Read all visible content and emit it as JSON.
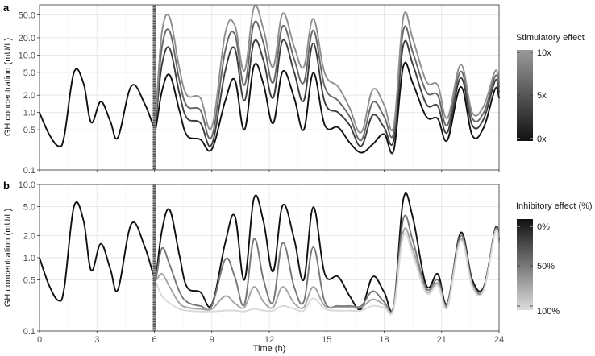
{
  "chart_data": [
    {
      "panel": "a",
      "type": "line",
      "ylabel": "GH concentration (mU/L)",
      "xlabel": "",
      "y_scale": "log",
      "ylim": [
        0.1,
        75
      ],
      "xlim": [
        0,
        24
      ],
      "x_ticks": [
        0,
        3,
        6,
        9,
        12,
        15,
        18,
        21,
        24
      ],
      "x_tick_labels": [
        "",
        "",
        "",
        "",
        "",
        "",
        "",
        "",
        ""
      ],
      "y_ticks": [
        0.1,
        0.5,
        1,
        2,
        5,
        10,
        20,
        50
      ],
      "y_tick_labels": [
        "0.1",
        "0.5",
        "1.0",
        "2.0",
        "5.0",
        "10.0",
        "20.0",
        "50.0"
      ],
      "intervention_start_h": 6,
      "legend": {
        "title": "Stimulatory effect",
        "type": "colorbar",
        "placement": "right",
        "labels": [
          "10x",
          "5x",
          "0x"
        ],
        "color_high": "#9a9a9a",
        "color_low": "#111111"
      },
      "series": [
        {
          "color": "#111111",
          "x": [
            0,
            0.5,
            1,
            1.3,
            1.8,
            2.3,
            2.7,
            3.2,
            3.7,
            4.1,
            4.8,
            5.5,
            6,
            6.1,
            6.4,
            6.8,
            7.3,
            7.7,
            8.4,
            9,
            9.7,
            10.2,
            10.7,
            11.2,
            11.7,
            12.2,
            12.7,
            13.3,
            13.8,
            14.3,
            14.9,
            15.6,
            16.2,
            16.8,
            17.4,
            18,
            18.5,
            19,
            19.5,
            20.2,
            20.8,
            21.3,
            22,
            22.6,
            23.2,
            23.8,
            24
          ],
          "y": [
            1,
            0.42,
            0.26,
            0.4,
            5,
            3.2,
            0.67,
            1.55,
            0.7,
            0.37,
            2.9,
            1.4,
            0.53,
            0.6,
            2.4,
            4.5,
            1.1,
            0.4,
            0.34,
            0.23,
            1.6,
            3.7,
            0.5,
            6.5,
            3.1,
            0.65,
            5.2,
            1.8,
            0.5,
            4.9,
            0.6,
            0.55,
            0.3,
            0.2,
            0.28,
            0.42,
            0.22,
            6.4,
            3.2,
            0.85,
            0.78,
            0.33,
            2.8,
            0.4,
            0.55,
            2.6,
            1.8
          ]
        },
        {
          "color": "#3d3d3d",
          "x": [
            6,
            6.1,
            6.4,
            6.8,
            7.3,
            7.7,
            8.4,
            9,
            9.7,
            10.2,
            10.7,
            11.2,
            11.7,
            12.2,
            12.7,
            13.3,
            13.8,
            14.3,
            14.9,
            15.6,
            16.2,
            16.8,
            17.4,
            18,
            18.5,
            19,
            19.5,
            20.2,
            20.8,
            21.3,
            22,
            22.6,
            23.2,
            23.8,
            24
          ],
          "y": [
            0.53,
            0.9,
            7,
            13,
            2.2,
            0.8,
            0.66,
            0.28,
            5.3,
            13,
            1.6,
            17,
            8,
            1.8,
            18,
            5,
            1.6,
            16,
            1.5,
            1,
            0.6,
            0.26,
            0.9,
            0.55,
            0.33,
            15,
            6.8,
            1.4,
            1.3,
            0.45,
            4,
            0.6,
            0.78,
            3.6,
            2.3
          ]
        },
        {
          "color": "#676767",
          "x": [
            6,
            6.1,
            6.4,
            6.8,
            7.3,
            7.7,
            8.4,
            9,
            9.7,
            10.2,
            10.7,
            11.2,
            11.7,
            12.2,
            12.7,
            13.3,
            13.8,
            14.3,
            14.9,
            15.6,
            16.2,
            16.8,
            17.4,
            18,
            18.5,
            19,
            19.5,
            20.2,
            20.8,
            21.3,
            22,
            22.6,
            23.2,
            23.8,
            24
          ],
          "y": [
            0.53,
            1.1,
            14,
            26,
            3.7,
            1.3,
            1.1,
            0.38,
            12,
            23,
            3,
            36,
            16,
            3.3,
            32,
            8.5,
            3.3,
            27,
            2.8,
            1.6,
            0.85,
            0.33,
            1.5,
            0.85,
            0.45,
            27,
            11,
            2.3,
            2,
            0.6,
            5.2,
            0.8,
            1,
            4.3,
            2.8
          ]
        },
        {
          "color": "#8f8f8f",
          "x": [
            6,
            6.1,
            6.4,
            6.8,
            7.3,
            7.7,
            8.4,
            9,
            9.7,
            10.2,
            10.7,
            11.2,
            11.7,
            12.2,
            12.7,
            13.3,
            13.8,
            14.3,
            14.9,
            15.6,
            16.2,
            16.8,
            17.4,
            18,
            18.5,
            19,
            19.5,
            20.2,
            20.8,
            21.3,
            22,
            22.6,
            23.2,
            23.8,
            24
          ],
          "y": [
            0.53,
            1.3,
            26,
            45,
            6,
            2,
            1.8,
            0.56,
            24,
            33,
            5.3,
            68,
            28,
            6.2,
            53,
            14,
            6.2,
            43,
            4.8,
            2.8,
            1.2,
            0.45,
            2.5,
            1.35,
            0.58,
            46,
            19,
            3.5,
            3,
            0.8,
            6.8,
            1,
            1.3,
            5.3,
            3.3
          ]
        }
      ]
    },
    {
      "panel": "b",
      "type": "line",
      "ylabel": "GH concentration (mU/L)",
      "xlabel": "Time (h)",
      "y_scale": "log",
      "ylim": [
        0.1,
        10
      ],
      "xlim": [
        0,
        24
      ],
      "x_ticks": [
        0,
        3,
        6,
        9,
        12,
        15,
        18,
        21,
        24
      ],
      "x_tick_labels": [
        "0",
        "3",
        "6",
        "9",
        "12",
        "15",
        "18",
        "21",
        "24"
      ],
      "y_ticks": [
        0.1,
        0.5,
        1,
        2,
        5,
        10
      ],
      "y_tick_labels": [
        "0.1",
        "0.5",
        "1.0",
        "2.0",
        "5.0",
        "10.0"
      ],
      "intervention_start_h": 6,
      "legend": {
        "title": "Inhibitory effect (%)",
        "type": "colorbar",
        "placement": "right",
        "labels": [
          "0%",
          "50%",
          "100%"
        ],
        "color_high": "#111111",
        "color_low": "#dcdcdc"
      },
      "series": [
        {
          "color": "#111111",
          "x": [
            0,
            0.5,
            1,
            1.3,
            1.8,
            2.3,
            2.7,
            3.2,
            3.7,
            4.1,
            4.8,
            5.5,
            6,
            6.1,
            6.4,
            6.8,
            7.3,
            7.7,
            8.4,
            9,
            9.7,
            10.2,
            10.7,
            11.2,
            11.7,
            12.2,
            12.7,
            13.3,
            13.8,
            14.3,
            14.9,
            15.6,
            16.2,
            16.8,
            17.4,
            18,
            18.5,
            19,
            19.5,
            20.2,
            20.8,
            21.3,
            22,
            22.6,
            23.2,
            23.8,
            24
          ],
          "y": [
            1,
            0.42,
            0.26,
            0.4,
            5,
            3.2,
            0.67,
            1.55,
            0.7,
            0.37,
            2.9,
            1.4,
            0.53,
            0.6,
            2.4,
            4.5,
            1.1,
            0.4,
            0.34,
            0.23,
            1.6,
            3.7,
            0.5,
            6.5,
            3.1,
            0.65,
            5.2,
            1.8,
            0.5,
            4.9,
            0.6,
            0.55,
            0.3,
            0.2,
            0.55,
            0.34,
            0.22,
            6.3,
            3.5,
            0.42,
            0.6,
            0.24,
            2.2,
            0.5,
            0.4,
            2.5,
            1.8
          ]
        },
        {
          "color": "#777777",
          "x": [
            6,
            6.1,
            6.4,
            6.8,
            7.3,
            7.7,
            8.4,
            9,
            9.7,
            10.2,
            10.7,
            11.2,
            11.7,
            12.2,
            12.7,
            13.3,
            13.8,
            14.3,
            14.9,
            15.6,
            16.2,
            16.8,
            17.4,
            18,
            18.5,
            19,
            19.5,
            20.2,
            20.8,
            21.3,
            22,
            22.6,
            23.2,
            23.8,
            24
          ],
          "y": [
            0.53,
            0.55,
            1.35,
            0.8,
            0.35,
            0.25,
            0.22,
            0.22,
            0.95,
            0.55,
            0.23,
            1.8,
            0.5,
            0.25,
            1.6,
            0.4,
            0.25,
            1.4,
            0.25,
            0.22,
            0.22,
            0.22,
            0.35,
            0.25,
            0.22,
            3.4,
            1.7,
            0.38,
            0.5,
            0.23,
            2,
            0.45,
            0.38,
            2.4,
            1.7
          ]
        },
        {
          "color": "#a3a3a3",
          "x": [
            6,
            6.1,
            6.4,
            6.8,
            7.3,
            7.7,
            8.4,
            9,
            9.7,
            10.2,
            10.7,
            11.2,
            11.7,
            12.2,
            12.7,
            13.3,
            13.8,
            14.3,
            14.9,
            15.6,
            16.2,
            16.8,
            17.4,
            18,
            18.5,
            19,
            19.5,
            20.2,
            20.8,
            21.3,
            22,
            22.6,
            23.2,
            23.8,
            24
          ],
          "y": [
            0.53,
            0.5,
            0.6,
            0.4,
            0.24,
            0.21,
            0.2,
            0.2,
            0.3,
            0.24,
            0.21,
            0.4,
            0.25,
            0.21,
            0.4,
            0.24,
            0.21,
            0.4,
            0.22,
            0.21,
            0.21,
            0.21,
            0.27,
            0.23,
            0.21,
            2.3,
            1.3,
            0.35,
            0.45,
            0.22,
            1.8,
            0.42,
            0.37,
            2.3,
            1.65
          ]
        },
        {
          "color": "#d9d9d9",
          "x": [
            6,
            6.1,
            6.4,
            6.8,
            7.3,
            7.7,
            8.4,
            9,
            9.7,
            10.2,
            10.7,
            11.2,
            11.7,
            12.2,
            12.7,
            13.3,
            13.8,
            14.3,
            14.9,
            15.6,
            16.2,
            16.8,
            17.4,
            18,
            18.5,
            19,
            19.5,
            20.2,
            20.8,
            21.3,
            22,
            22.6,
            23.2,
            23.8,
            24
          ],
          "y": [
            0.53,
            0.45,
            0.3,
            0.24,
            0.2,
            0.19,
            0.185,
            0.185,
            0.19,
            0.19,
            0.185,
            0.2,
            0.19,
            0.19,
            0.22,
            0.2,
            0.19,
            0.28,
            0.2,
            0.19,
            0.19,
            0.19,
            0.22,
            0.21,
            0.2,
            2,
            1.1,
            0.33,
            0.42,
            0.21,
            1.7,
            0.4,
            0.36,
            2.2,
            1.6
          ]
        }
      ]
    }
  ]
}
